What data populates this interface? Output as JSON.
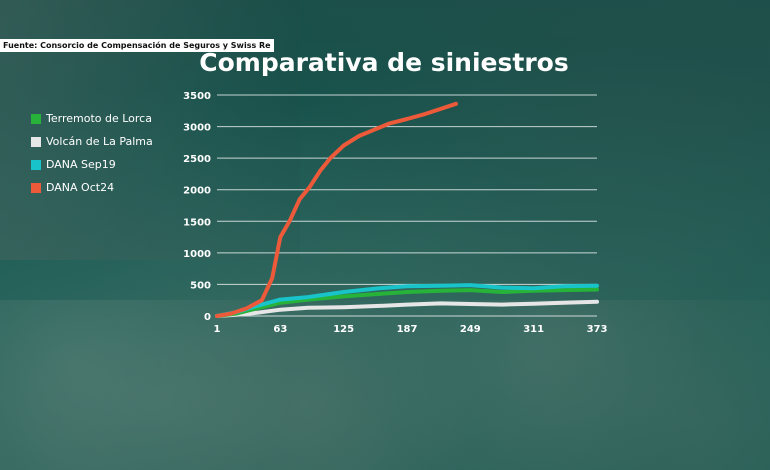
{
  "source": "Fuente: Consorcio de Compensación de Seguros y Swiss Re",
  "chart_data": {
    "type": "line",
    "title": "Comparativa de siniestros",
    "xlabel": "",
    "ylabel": "",
    "x_ticks": [
      1,
      63,
      125,
      187,
      249,
      311,
      373
    ],
    "xlim": [
      1,
      373
    ],
    "y_ticks": [
      0,
      500,
      1000,
      1500,
      2000,
      2500,
      3000,
      3500
    ],
    "ylim": [
      0,
      3500
    ],
    "grid": "horizontal",
    "legend": "left",
    "series": [
      {
        "name": "Terremoto de Lorca",
        "color": "#27b33a",
        "x": [
          1,
          20,
          40,
          63,
          90,
          125,
          160,
          187,
          220,
          249,
          280,
          311,
          340,
          373
        ],
        "values": [
          0,
          40,
          120,
          210,
          260,
          310,
          350,
          380,
          400,
          410,
          380,
          400,
          410,
          420
        ]
      },
      {
        "name": "Volcán de La Palma",
        "color": "#e6e6e6",
        "x": [
          1,
          20,
          40,
          63,
          90,
          125,
          160,
          187,
          220,
          249,
          280,
          311,
          340,
          373
        ],
        "values": [
          0,
          20,
          50,
          100,
          130,
          140,
          160,
          180,
          200,
          190,
          180,
          195,
          210,
          225
        ]
      },
      {
        "name": "DANA Sep19",
        "color": "#18c4c9",
        "x": [
          1,
          20,
          40,
          63,
          90,
          125,
          160,
          187,
          220,
          249,
          280,
          311,
          340,
          373
        ],
        "values": [
          0,
          60,
          160,
          260,
          300,
          380,
          440,
          470,
          480,
          490,
          450,
          440,
          470,
          480
        ]
      },
      {
        "name": "DANA Oct24",
        "color": "#ec5a3a",
        "x": [
          1,
          15,
          30,
          45,
          55,
          63,
          72,
          82,
          92,
          102,
          112,
          125,
          140,
          155,
          170,
          187,
          205,
          220,
          235
        ],
        "values": [
          0,
          40,
          120,
          250,
          600,
          1250,
          1500,
          1850,
          2050,
          2300,
          2500,
          2700,
          2850,
          2950,
          3050,
          3120,
          3200,
          3280,
          3360
        ]
      }
    ]
  }
}
